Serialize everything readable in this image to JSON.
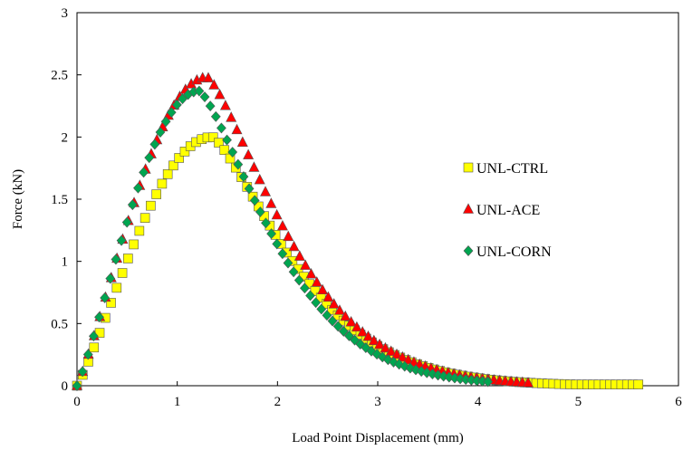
{
  "chart_data": {
    "type": "scatter",
    "xlabel": "Load Point Displacement (mm)",
    "ylabel": "Force (kN)",
    "xlim": [
      0,
      6
    ],
    "ylim": [
      0,
      3
    ],
    "x_ticks": [
      "0",
      "1",
      "2",
      "3",
      "4",
      "5",
      "6"
    ],
    "y_ticks": [
      "0",
      "0.5",
      "1",
      "1.5",
      "2",
      "2.5",
      "3"
    ],
    "grid": false,
    "legend_position": "right",
    "series": [
      {
        "name": "UNL-CTRL",
        "marker": "square",
        "color": "#ffff00",
        "x_start": 0,
        "x_end": 5.6,
        "count": 100,
        "peak_x": 1.35,
        "peak_y": 2.0,
        "tail_y": 0.01
      },
      {
        "name": "UNL-ACE",
        "marker": "triangle",
        "color": "#ff0000",
        "x_start": 0,
        "x_end": 4.5,
        "count": 80,
        "peak_x": 1.3,
        "peak_y": 2.48,
        "tail_y": 0.0
      },
      {
        "name": "UNL-CORN",
        "marker": "diamond",
        "color": "#00a550",
        "x_start": 0,
        "x_end": 4.1,
        "count": 75,
        "peak_x": 1.22,
        "peak_y": 2.37,
        "tail_y": 0.0
      }
    ]
  }
}
